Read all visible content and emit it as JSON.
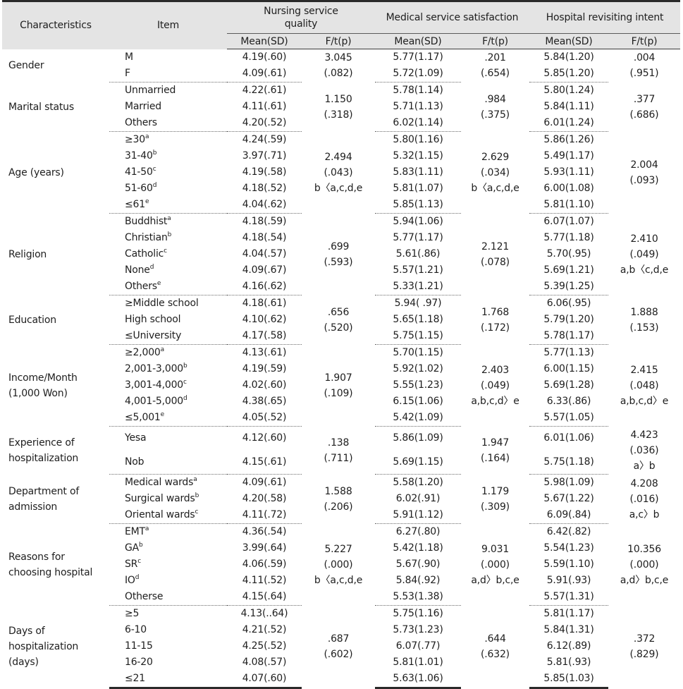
{
  "header": {
    "characteristics": "Characteristics",
    "item": "Item",
    "nursing": "Nursing service quality",
    "medical": "Medical service satisfaction",
    "hospital": "Hospital revisiting intent",
    "mean_sd": "Mean(SD)",
    "f_t_p": "F/t(p)"
  },
  "groups": [
    {
      "name": "Gender",
      "rows": [
        {
          "item": "M",
          "sup": "",
          "n": "4.19(.60)",
          "m": "5.77(1.17)",
          "h": "5.84(1.20)"
        },
        {
          "item": "F",
          "sup": "",
          "n": "4.09(.61)",
          "m": "5.72(1.09)",
          "h": "5.85(1.20)"
        }
      ],
      "n_stat": [
        "3.045",
        "(.082)"
      ],
      "m_stat": [
        ".201",
        "(.654)"
      ],
      "h_stat": [
        ".004",
        "(.951)"
      ]
    },
    {
      "name": "Marital status",
      "rows": [
        {
          "item": "Unmarried",
          "sup": "",
          "n": "4.22(.61)",
          "m": "5.78(1.14)",
          "h": "5.80(1.24)"
        },
        {
          "item": "Married",
          "sup": "",
          "n": "4.11(.61)",
          "m": "5.71(1.13)",
          "h": "5.84(1.11)"
        },
        {
          "item": "Others",
          "sup": "",
          "n": "4.20(.52)",
          "m": "6.02(1.14)",
          "h": "6.01(1.24)"
        }
      ],
      "n_stat": [
        "1.150",
        "(.318)"
      ],
      "m_stat": [
        ".984",
        "(.375)"
      ],
      "h_stat": [
        ".377",
        "(.686)"
      ]
    },
    {
      "name": "Age (years)",
      "rows": [
        {
          "item": "≥30",
          "sup": "a",
          "n": "4.24(.59)",
          "m": "5.80(1.16)",
          "h": "5.86(1.26)"
        },
        {
          "item": "31-40",
          "sup": "b",
          "n": "3.97(.71)",
          "m": "5.32(1.15)",
          "h": "5.49(1.17)"
        },
        {
          "item": "41-50",
          "sup": "c",
          "n": "4.19(.58)",
          "m": "5.83(1.11)",
          "h": "5.93(1.11)"
        },
        {
          "item": "51-60",
          "sup": "d",
          "n": "4.18(.52)",
          "m": "5.81(1.07)",
          "h": "6.00(1.08)"
        },
        {
          "item": "≤61",
          "sup": "e",
          "n": "4.04(.62)",
          "m": "5.85(1.13)",
          "h": "5.81(1.10)"
        }
      ],
      "n_stat": [
        "2.494",
        "(.043)",
        "b〈a,c,d,e"
      ],
      "m_stat": [
        "2.629",
        "(.034)",
        "b〈a,c,d,e"
      ],
      "h_stat": [
        "2.004",
        "(.093)"
      ]
    },
    {
      "name": "Religion",
      "rows": [
        {
          "item": "Buddhist",
          "sup": "a",
          "n": "4.18(.59)",
          "m": "5.94(1.06)",
          "h": "6.07(1.07)"
        },
        {
          "item": "Christian",
          "sup": "b",
          "n": "4.18(.54)",
          "m": "5.77(1.17)",
          "h": "5.77(1.18)"
        },
        {
          "item": "Catholic",
          "sup": "c",
          "n": "4.04(.57)",
          "m": "5.61(.86)",
          "h": "5.70(.95)"
        },
        {
          "item": "None",
          "sup": "d",
          "n": "4.09(.67)",
          "m": "5.57(1.21)",
          "h": "5.69(1.21)"
        },
        {
          "item": "Others",
          "sup": "e",
          "n": "4.16(.62)",
          "m": "5.33(1.21)",
          "h": "5.39(1.25)"
        }
      ],
      "n_stat": [
        ".699",
        "(.593)"
      ],
      "m_stat": [
        "2.121",
        "(.078)"
      ],
      "h_stat": [
        "2.410",
        "(.049)",
        "a,b〈c,d,e"
      ]
    },
    {
      "name": "Education",
      "rows": [
        {
          "item": "≥Middle school",
          "sup": "",
          "n": "4.18(.61)",
          "m": "5.94( .97)",
          "h": "6.06(.95)"
        },
        {
          "item": "High school",
          "sup": "",
          "n": "4.10(.62)",
          "m": "5.65(1.18)",
          "h": "5.79(1.20)"
        },
        {
          "item": "≤University",
          "sup": "",
          "n": "4.17(.58)",
          "m": "5.75(1.15)",
          "h": "5.78(1.17)"
        }
      ],
      "n_stat": [
        ".656",
        "(.520)"
      ],
      "m_stat": [
        "1.768",
        "(.172)"
      ],
      "h_stat": [
        "1.888",
        "(.153)"
      ]
    },
    {
      "name": "Income/Month (1,000 Won)",
      "rows": [
        {
          "item": "≥2,000",
          "sup": "a",
          "n": "4.13(.61)",
          "m": "5.70(1.15)",
          "h": "5.77(1.13)"
        },
        {
          "item": "2,001-3,000",
          "sup": "b",
          "n": "4.19(.59)",
          "m": "5.92(1.02)",
          "h": "6.00(1.15)"
        },
        {
          "item": "3,001-4,000",
          "sup": "c",
          "n": "4.02(.60)",
          "m": "5.55(1.23)",
          "h": "5.69(1.28)"
        },
        {
          "item": "4,001-5,000",
          "sup": "d",
          "n": "4.38(.65)",
          "m": "6.15(1.06)",
          "h": "6.33(.86)"
        },
        {
          "item": "≤5,001",
          "sup": "e",
          "n": "4.05(.52)",
          "m": "5.42(1.09)",
          "h": "5.57(1.05)"
        }
      ],
      "n_stat": [
        "1.907",
        "(.109)"
      ],
      "m_stat": [
        "2.403",
        "(.049)",
        "a,b,c,d〉e"
      ],
      "h_stat": [
        "2.415",
        "(.048)",
        "a,b,c,d〉e"
      ]
    },
    {
      "name": "Experience of hospitalization",
      "rows": [
        {
          "item": "Yesa",
          "sup": "",
          "n": "4.12(.60)",
          "m": "5.86(1.09)",
          "h": "6.01(1.06)"
        },
        {
          "item": "Nob",
          "sup": "",
          "n": "4.15(.61)",
          "m": "5.69(1.15)",
          "h": "5.75(1.18)"
        }
      ],
      "n_stat": [
        ".138",
        "(.711)"
      ],
      "m_stat": [
        "1.947",
        "(.164)"
      ],
      "h_stat": [
        "4.423",
        "(.036)",
        "a〉b"
      ]
    },
    {
      "name": "Department of admission",
      "rows": [
        {
          "item": "Medical wards",
          "sup": "a",
          "n": "4.09(.61)",
          "m": "5.58(1.20)",
          "h": "5.98(1.09)"
        },
        {
          "item": "Surgical wards",
          "sup": "b",
          "n": "4.20(.58)",
          "m": "6.02(.91)",
          "h": "5.67(1.22)"
        },
        {
          "item": "Oriental wards",
          "sup": "c",
          "n": "4.11(.72)",
          "m": "5.91(1.12)",
          "h": "6.09(.84)"
        }
      ],
      "n_stat": [
        "1.588",
        "(.206)"
      ],
      "m_stat": [
        "1.179",
        "(.309)"
      ],
      "h_stat": [
        "4.208",
        "(.016)",
        "a,c〉b"
      ]
    },
    {
      "name": "Reasons for choosing hospital",
      "rows": [
        {
          "item": "EMT",
          "sup": "a",
          "n": "4.36(.54)",
          "m": "6.27(.80)",
          "h": "6.42(.82)"
        },
        {
          "item": "GA",
          "sup": "b",
          "n": "3.99(.64)",
          "m": "5.42(1.18)",
          "h": "5.54(1.23)"
        },
        {
          "item": "SR",
          "sup": "c",
          "n": "4.06(.59)",
          "m": "5.67(.90)",
          "h": "5.59(1.10)"
        },
        {
          "item": "IO",
          "sup": "d",
          "n": "4.11(.52)",
          "m": "5.84(.92)",
          "h": "5.91(.93)"
        },
        {
          "item": "Otherse",
          "sup": "",
          "n": "4.15(.64)",
          "m": "5.53(1.38)",
          "h": "5.57(1.31)"
        }
      ],
      "n_stat": [
        "5.227",
        "(.000)",
        "b〈a,c,d,e"
      ],
      "m_stat": [
        "9.031",
        "(.000)",
        "a,d〉b,c,e"
      ],
      "h_stat": [
        "10.356",
        "(.000)",
        "a,d〉b,c,e"
      ]
    },
    {
      "name": "Days of hospitalization (days)",
      "rows": [
        {
          "item": "≥5",
          "sup": "",
          "n": "4.13(..64)",
          "m": "5.75(1.16)",
          "h": "5.81(1.17)"
        },
        {
          "item": "6-10",
          "sup": "",
          "n": "4.21(.52)",
          "m": "5.73(1.23)",
          "h": "5.84(1.31)"
        },
        {
          "item": "11-15",
          "sup": "",
          "n": "4.25(.52)",
          "m": "6.07(.77)",
          "h": "6.12(.89)"
        },
        {
          "item": "16-20",
          "sup": "",
          "n": "4.08(.57)",
          "m": "5.81(1.01)",
          "h": "5.81(.93)"
        },
        {
          "item": "≤21",
          "sup": "",
          "n": "4.07(.60)",
          "m": "5.63(1.06)",
          "h": "5.85(1.03)"
        }
      ],
      "n_stat": [
        ".687",
        "(.602)"
      ],
      "m_stat": [
        ".644",
        "(.632)"
      ],
      "h_stat": [
        ".372",
        "(.829)"
      ]
    }
  ]
}
